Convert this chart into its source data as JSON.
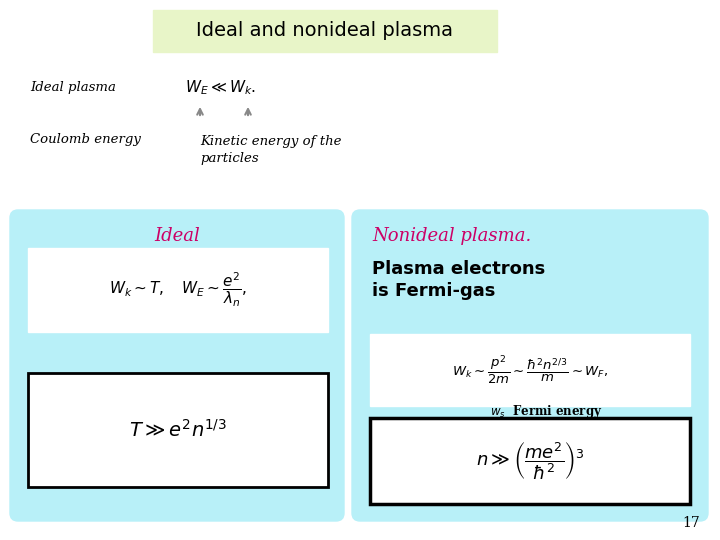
{
  "title": "Ideal and nonideal plasma",
  "title_bg": "#e8f5c8",
  "title_fontsize": 14,
  "bg_color": "#ffffff",
  "cyan_box_color": "#b8f0f8",
  "ideal_label": "Ideal",
  "nonideal_label": "Nonideal plasma.",
  "label_color": "#cc0066",
  "label_fontsize": 13,
  "top_left_text": "Ideal plasma",
  "top_formula": "$W_E \\ll W_k.$",
  "coulomb_text": "Coulomb energy",
  "kinetic_text": "Kinetic energy of the\nparticles",
  "formula1": "$W_k \\sim T, \\quad W_E \\sim \\dfrac{e^2}{\\lambda_n},$",
  "formula2": "$T \\gg e^2 n^{1/3}$",
  "formula3": "$W_k \\sim \\dfrac{p^2}{2m} \\sim \\dfrac{\\hbar^2 n^{2/3}}{m} \\sim W_F,$",
  "fermi_text": "$w_s$  Fermi energy",
  "formula4": "$n \\gg \\left(\\dfrac{me^2}{\\hbar^2}\\right)^3$",
  "plasma_electrons_text": "Plasma electrons\nis Fermi-gas",
  "page_number": "17",
  "arrow_color": "#888888"
}
